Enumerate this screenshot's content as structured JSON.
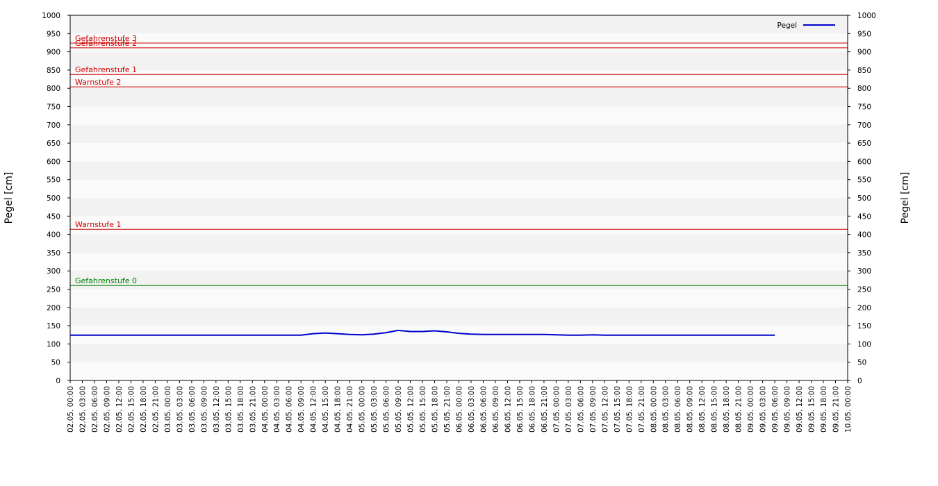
{
  "chart_data": {
    "type": "line",
    "ylabel": "Pegel [cm]",
    "y2label": "Pegel [cm]",
    "ylim": [
      0,
      1000
    ],
    "yticks": [
      0,
      50,
      100,
      150,
      200,
      250,
      300,
      350,
      400,
      450,
      500,
      550,
      600,
      650,
      700,
      750,
      800,
      850,
      900,
      950,
      1000
    ],
    "y2lim": [
      0,
      1000
    ],
    "y2ticks": [
      0,
      50,
      100,
      150,
      200,
      250,
      300,
      350,
      400,
      450,
      500,
      550,
      600,
      650,
      700,
      750,
      800,
      850,
      900,
      950,
      1000
    ],
    "grid": true,
    "legend": "upper right",
    "categories": [
      "02.05. 00:00",
      "02.05. 03:00",
      "02.05. 06:00",
      "02.05. 09:00",
      "02.05. 12:00",
      "02.05. 15:00",
      "02.05. 18:00",
      "02.05. 21:00",
      "03.05. 00:00",
      "03.05. 03:00",
      "03.05. 06:00",
      "03.05. 09:00",
      "03.05. 12:00",
      "03.05. 15:00",
      "03.05. 18:00",
      "03.05. 21:00",
      "04.05. 00:00",
      "04.05. 03:00",
      "04.05. 06:00",
      "04.05. 09:00",
      "04.05. 12:00",
      "04.05. 15:00",
      "04.05. 18:00",
      "04.05. 21:00",
      "05.05. 00:00",
      "05.05. 03:00",
      "05.05. 06:00",
      "05.05. 09:00",
      "05.05. 12:00",
      "05.05. 15:00",
      "05.05. 18:00",
      "05.05. 21:00",
      "06.05. 00:00",
      "06.05. 03:00",
      "06.05. 06:00",
      "06.05. 09:00",
      "06.05. 12:00",
      "06.05. 15:00",
      "06.05. 18:00",
      "06.05. 21:00",
      "07.05. 00:00",
      "07.05. 03:00",
      "07.05. 06:00",
      "07.05. 09:00",
      "07.05. 12:00",
      "07.05. 15:00",
      "07.05. 18:00",
      "07.05. 21:00",
      "08.05. 00:00",
      "08.05. 03:00",
      "08.05. 06:00",
      "08.05. 09:00",
      "08.05. 12:00",
      "08.05. 15:00",
      "08.05. 18:00",
      "08.05. 21:00",
      "09.05. 00:00",
      "09.05. 03:00",
      "09.05. 06:00",
      "09.05. 09:00",
      "09.05. 12:00",
      "09.05. 15:00",
      "09.05. 18:00",
      "09.05. 21:00",
      "10.05. 00:00"
    ],
    "series": [
      {
        "name": "Pegel",
        "color": "#0000cc",
        "values": [
          124,
          124,
          124,
          124,
          124,
          124,
          124,
          124,
          124,
          124,
          124,
          124,
          124,
          124,
          124,
          124,
          124,
          124,
          124,
          124,
          128,
          130,
          128,
          126,
          125,
          127,
          131,
          137,
          134,
          134,
          136,
          133,
          129,
          127,
          126,
          126,
          126,
          126,
          126,
          126,
          125,
          124,
          124,
          125,
          124,
          124,
          124,
          124,
          124,
          124,
          124,
          124,
          124,
          124,
          124,
          124,
          124,
          124,
          124,
          null,
          null,
          null,
          null,
          null,
          null
        ]
      }
    ],
    "annotations": [
      {
        "label": "Gefahrenstufe 3",
        "value": 924,
        "color": "#cc0000"
      },
      {
        "label": "Gefahrenstufe 2",
        "value": 911,
        "color": "#cc0000"
      },
      {
        "label": "Gefahrenstufe 1",
        "value": 838,
        "color": "#cc0000"
      },
      {
        "label": "Warnstufe 2",
        "value": 804,
        "color": "#cc0000"
      },
      {
        "label": "Warnstufe 1",
        "value": 414,
        "color": "#cc0000"
      },
      {
        "label": "Gefahrenstufe 0",
        "value": 260,
        "color": "#008000"
      }
    ]
  }
}
